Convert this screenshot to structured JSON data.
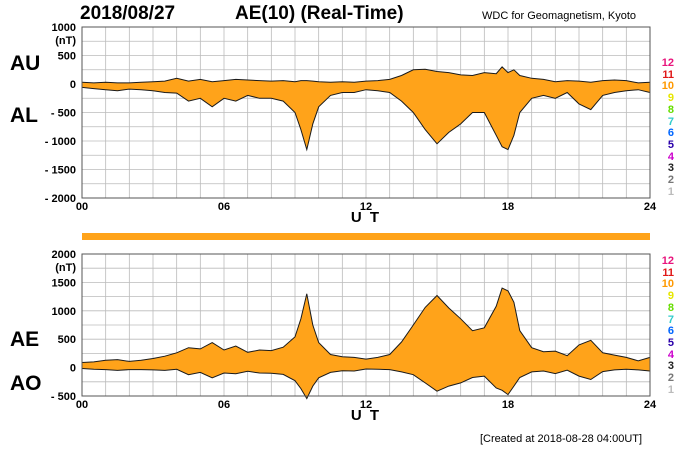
{
  "header": {
    "date": "2018/08/27",
    "title": "AE(10) (Real-Time)",
    "source": "WDC for Geomagnetism, Kyoto"
  },
  "footer": {
    "created": "[Created at 2018-08-28 04:00UT]"
  },
  "legend": {
    "labels": [
      "12",
      "11",
      "10",
      "9",
      "8",
      "7",
      "6",
      "5",
      "4",
      "3",
      "2",
      "1"
    ],
    "colors": [
      "#e8147c",
      "#e01818",
      "#ff9900",
      "#e6e600",
      "#66dd00",
      "#33cccc",
      "#0066ff",
      "#2a00aa",
      "#cc00cc",
      "#222222",
      "#777777",
      "#bbbbbb"
    ]
  },
  "chart_data": [
    {
      "type": "area",
      "name": "AU/AL",
      "label_upper": "AU",
      "label_lower": "AL",
      "unit": "(nT)",
      "xlabel": "U T",
      "xlim": [
        0,
        24
      ],
      "ylim": [
        -2000,
        1000
      ],
      "y_ticks": [
        "1000",
        "500",
        "0",
        "- 500",
        "- 1000",
        "- 1500",
        "- 2000"
      ],
      "y_tick_values": [
        1000,
        500,
        0,
        -500,
        -1000,
        -1500,
        -2000
      ],
      "x_ticks": [
        "00",
        "06",
        "12",
        "18",
        "24"
      ],
      "x_tick_values": [
        0,
        6,
        12,
        18,
        24
      ],
      "grid": true,
      "fill_color": "#ffa31a",
      "x": [
        0,
        0.5,
        1,
        1.5,
        2,
        2.5,
        3,
        3.5,
        4,
        4.5,
        5,
        5.5,
        6,
        6.5,
        7,
        7.5,
        8,
        8.5,
        9,
        9.25,
        9.5,
        9.75,
        10,
        10.5,
        11,
        11.5,
        12,
        12.5,
        13,
        13.5,
        14,
        14.5,
        15,
        15.5,
        16,
        16.5,
        17,
        17.5,
        17.75,
        18,
        18.25,
        18.5,
        19,
        19.5,
        20,
        20.5,
        21,
        21.5,
        22,
        22.5,
        23,
        23.5,
        24
      ],
      "upper": [
        30,
        20,
        30,
        20,
        20,
        30,
        40,
        50,
        100,
        50,
        80,
        40,
        60,
        80,
        70,
        60,
        50,
        60,
        40,
        60,
        60,
        50,
        40,
        30,
        40,
        30,
        50,
        60,
        80,
        150,
        250,
        260,
        220,
        200,
        160,
        150,
        200,
        180,
        300,
        200,
        250,
        150,
        100,
        80,
        40,
        60,
        50,
        30,
        60,
        70,
        60,
        20,
        30
      ],
      "lower": [
        -60,
        -80,
        -100,
        -120,
        -90,
        -100,
        -120,
        -150,
        -160,
        -300,
        -250,
        -400,
        -250,
        -300,
        -200,
        -250,
        -250,
        -300,
        -500,
        -800,
        -1150,
        -700,
        -400,
        -200,
        -150,
        -150,
        -100,
        -120,
        -150,
        -300,
        -500,
        -800,
        -1050,
        -850,
        -700,
        -500,
        -500,
        -900,
        -1100,
        -1150,
        -900,
        -500,
        -250,
        -200,
        -250,
        -150,
        -350,
        -450,
        -200,
        -150,
        -120,
        -100,
        -150
      ]
    },
    {
      "type": "area",
      "name": "AE/AO",
      "label_upper": "AE",
      "label_lower": "AO",
      "unit": "(nT)",
      "xlabel": "U T",
      "xlim": [
        0,
        24
      ],
      "ylim": [
        -500,
        2000
      ],
      "y_ticks": [
        "2000",
        "1500",
        "1000",
        "500",
        "0",
        "- 500"
      ],
      "y_tick_values": [
        2000,
        1500,
        1000,
        500,
        0,
        -500
      ],
      "x_ticks": [
        "00",
        "06",
        "12",
        "18",
        "24"
      ],
      "x_tick_values": [
        0,
        6,
        12,
        18,
        24
      ],
      "grid": true,
      "fill_color": "#ffa31a",
      "x": [
        0,
        0.5,
        1,
        1.5,
        2,
        2.5,
        3,
        3.5,
        4,
        4.5,
        5,
        5.5,
        6,
        6.5,
        7,
        7.5,
        8,
        8.5,
        9,
        9.25,
        9.5,
        9.75,
        10,
        10.5,
        11,
        11.5,
        12,
        12.5,
        13,
        13.5,
        14,
        14.5,
        15,
        15.5,
        16,
        16.5,
        17,
        17.5,
        17.75,
        18,
        18.25,
        18.5,
        19,
        19.5,
        20,
        20.5,
        21,
        21.5,
        22,
        22.5,
        23,
        23.5,
        24
      ],
      "upper": [
        90,
        100,
        130,
        140,
        110,
        130,
        160,
        200,
        260,
        350,
        330,
        440,
        310,
        380,
        270,
        310,
        300,
        360,
        540,
        860,
        1300,
        750,
        440,
        230,
        190,
        180,
        150,
        180,
        230,
        450,
        750,
        1060,
        1270,
        1050,
        860,
        650,
        700,
        1080,
        1400,
        1350,
        1150,
        650,
        350,
        280,
        290,
        210,
        400,
        480,
        260,
        220,
        180,
        120,
        180
      ],
      "lower": [
        -15,
        -30,
        -35,
        -50,
        -35,
        -35,
        -40,
        -50,
        -30,
        -125,
        -85,
        -180,
        -95,
        -110,
        -65,
        -95,
        -100,
        -120,
        -230,
        -370,
        -545,
        -325,
        -180,
        -85,
        -55,
        -60,
        -25,
        -30,
        -35,
        -75,
        -125,
        -270,
        -415,
        -325,
        -270,
        -175,
        -150,
        -360,
        -400,
        -475,
        -325,
        -175,
        -75,
        -60,
        -105,
        -45,
        -150,
        -210,
        -70,
        -40,
        -30,
        -40,
        -60
      ]
    }
  ]
}
